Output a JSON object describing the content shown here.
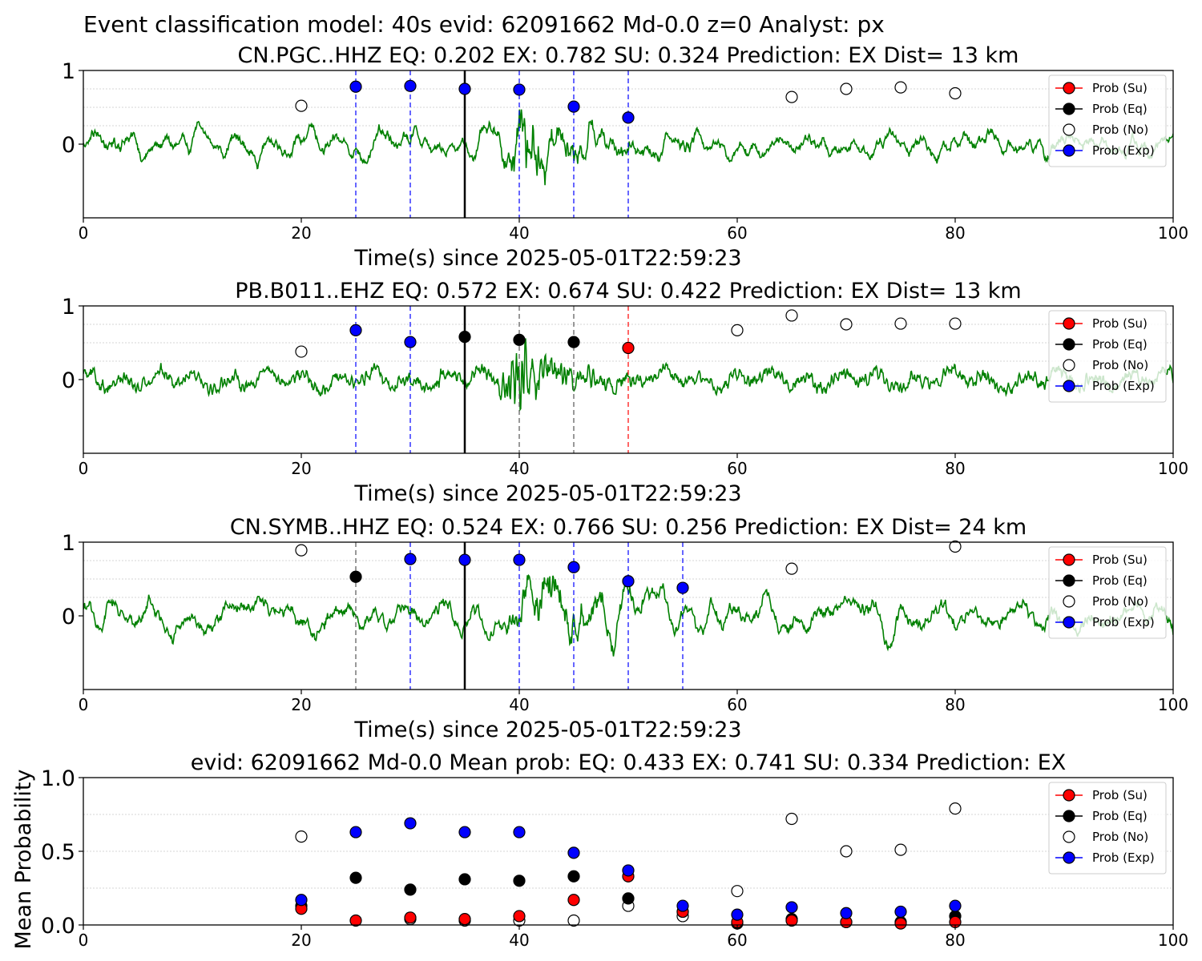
{
  "suptitle": "Event classification model: 40s evid: 62091662 Md-0.0 z=0 Analyst: px",
  "legend": {
    "su": "Prob (Su)",
    "eq": "Prob (Eq)",
    "no": "Prob (No)",
    "exp": "Prob (Exp)"
  },
  "colors": {
    "su": "#ff0000",
    "eq": "#000000",
    "no": "#ffffff",
    "exp": "#0000ff",
    "waveform": "#008000",
    "pick": "#000000"
  },
  "chart_data": [
    {
      "type": "line",
      "title": "CN.PGC..HHZ   EQ: 0.202  EX: 0.782  SU: 0.324   Prediction: EX    Dist= 13 km",
      "xlabel": "Time(s) since 2025-05-01T22:59:23",
      "ylabel": "",
      "xlim": [
        0,
        100
      ],
      "ylim": [
        -1,
        1
      ],
      "xticks": [
        "0",
        "20",
        "40",
        "60",
        "80",
        "100"
      ],
      "yticks": [
        "1",
        "0"
      ],
      "pick_time": 35,
      "waveform_signal": {
        "onset": 38,
        "peak": 40,
        "decay": 4,
        "amplitude": 0.9,
        "noise": 0.1,
        "smooth": 5
      },
      "points": [
        {
          "t": 20,
          "p": 0.52,
          "cls": "no"
        },
        {
          "t": 25,
          "p": 0.78,
          "cls": "exp"
        },
        {
          "t": 30,
          "p": 0.79,
          "cls": "exp"
        },
        {
          "t": 35,
          "p": 0.75,
          "cls": "exp"
        },
        {
          "t": 40,
          "p": 0.74,
          "cls": "exp"
        },
        {
          "t": 45,
          "p": 0.51,
          "cls": "exp"
        },
        {
          "t": 50,
          "p": 0.36,
          "cls": "exp"
        },
        {
          "t": 65,
          "p": 0.64,
          "cls": "no"
        },
        {
          "t": 70,
          "p": 0.75,
          "cls": "no"
        },
        {
          "t": 75,
          "p": 0.77,
          "cls": "no"
        },
        {
          "t": 80,
          "p": 0.69,
          "cls": "no"
        }
      ],
      "vlines": [
        {
          "t": 25,
          "cls": "exp"
        },
        {
          "t": 30,
          "cls": "exp"
        },
        {
          "t": 40,
          "cls": "exp"
        },
        {
          "t": 45,
          "cls": "exp"
        },
        {
          "t": 50,
          "cls": "exp"
        }
      ]
    },
    {
      "type": "line",
      "title": "PB.B011..EHZ   EQ: 0.572  EX: 0.674  SU: 0.422   Prediction: EX    Dist= 13 km",
      "xlabel": "Time(s) since 2025-05-01T22:59:23",
      "ylabel": "",
      "xlim": [
        0,
        100
      ],
      "ylim": [
        -1,
        1
      ],
      "xticks": [
        "0",
        "20",
        "40",
        "60",
        "80",
        "100"
      ],
      "yticks": [
        "1",
        "0"
      ],
      "pick_time": 35,
      "waveform_signal": {
        "onset": 38,
        "peak": 40,
        "decay": 3,
        "amplitude": 0.6,
        "noise": 0.06,
        "smooth": 1
      },
      "points": [
        {
          "t": 20,
          "p": 0.38,
          "cls": "no"
        },
        {
          "t": 25,
          "p": 0.67,
          "cls": "exp"
        },
        {
          "t": 30,
          "p": 0.51,
          "cls": "exp"
        },
        {
          "t": 35,
          "p": 0.58,
          "cls": "eq"
        },
        {
          "t": 40,
          "p": 0.54,
          "cls": "eq"
        },
        {
          "t": 45,
          "p": 0.51,
          "cls": "eq"
        },
        {
          "t": 50,
          "p": 0.43,
          "cls": "su"
        },
        {
          "t": 60,
          "p": 0.67,
          "cls": "no"
        },
        {
          "t": 65,
          "p": 0.87,
          "cls": "no"
        },
        {
          "t": 70,
          "p": 0.75,
          "cls": "no"
        },
        {
          "t": 75,
          "p": 0.76,
          "cls": "no"
        },
        {
          "t": 80,
          "p": 0.76,
          "cls": "no"
        }
      ],
      "vlines": [
        {
          "t": 25,
          "cls": "exp"
        },
        {
          "t": 30,
          "cls": "exp"
        },
        {
          "t": 40,
          "cls": "eq"
        },
        {
          "t": 45,
          "cls": "eq"
        },
        {
          "t": 50,
          "cls": "su"
        }
      ]
    },
    {
      "type": "line",
      "title": "CN.SYMB..HHZ   EQ: 0.524  EX: 0.766  SU: 0.256   Prediction: EX    Dist= 24 km",
      "xlabel": "Time(s) since 2025-05-01T22:59:23",
      "ylabel": "",
      "xlim": [
        0,
        100
      ],
      "ylim": [
        -1,
        1
      ],
      "xticks": [
        "0",
        "20",
        "40",
        "60",
        "80",
        "100"
      ],
      "yticks": [
        "1",
        "0"
      ],
      "pick_time": 35,
      "waveform_signal": {
        "onset": 38,
        "peak": 42,
        "decay": 6,
        "amplitude": 0.7,
        "noise": 0.16,
        "smooth": 9
      },
      "points": [
        {
          "t": 20,
          "p": 0.89,
          "cls": "no"
        },
        {
          "t": 25,
          "p": 0.53,
          "cls": "eq"
        },
        {
          "t": 30,
          "p": 0.77,
          "cls": "exp"
        },
        {
          "t": 35,
          "p": 0.76,
          "cls": "exp"
        },
        {
          "t": 40,
          "p": 0.76,
          "cls": "exp"
        },
        {
          "t": 45,
          "p": 0.66,
          "cls": "exp"
        },
        {
          "t": 50,
          "p": 0.47,
          "cls": "exp"
        },
        {
          "t": 55,
          "p": 0.38,
          "cls": "exp"
        },
        {
          "t": 65,
          "p": 0.64,
          "cls": "no"
        },
        {
          "t": 80,
          "p": 0.94,
          "cls": "no"
        }
      ],
      "vlines": [
        {
          "t": 25,
          "cls": "eq"
        },
        {
          "t": 30,
          "cls": "exp"
        },
        {
          "t": 40,
          "cls": "exp"
        },
        {
          "t": 45,
          "cls": "exp"
        },
        {
          "t": 50,
          "cls": "exp"
        },
        {
          "t": 55,
          "cls": "exp"
        }
      ]
    },
    {
      "type": "scatter",
      "title": "evid: 62091662  Md-0.0   Mean prob:   EQ: 0.433  EX: 0.741  SU: 0.334   Prediction: EX",
      "xlabel": "",
      "ylabel": "Mean Probability",
      "xlim": [
        0,
        100
      ],
      "ylim": [
        0,
        1
      ],
      "xticks": [
        "0",
        "20",
        "40",
        "60",
        "80",
        "100"
      ],
      "yticks": [
        "0.0",
        "0.5",
        "1.0"
      ],
      "x": [
        20,
        25,
        30,
        35,
        40,
        45,
        50,
        55,
        60,
        65,
        70,
        75,
        80
      ],
      "series": [
        {
          "name": "Prob (No)",
          "cls": "no",
          "values": [
            0.6,
            null,
            0.04,
            0.03,
            0.03,
            0.03,
            0.13,
            0.06,
            0.23,
            0.72,
            0.5,
            0.51,
            0.79
          ]
        },
        {
          "name": "Prob (Eq)",
          "cls": "eq",
          "values": [
            0.13,
            0.32,
            0.24,
            0.31,
            0.3,
            0.33,
            0.18,
            0.09,
            0.01,
            0.04,
            0.02,
            0.02,
            0.06
          ]
        },
        {
          "name": "Prob (Su)",
          "cls": "su",
          "values": [
            0.11,
            0.03,
            0.05,
            0.04,
            0.06,
            0.17,
            0.33,
            0.09,
            0.02,
            0.03,
            0.02,
            0.01,
            0.02
          ]
        },
        {
          "name": "Prob (Exp)",
          "cls": "exp",
          "values": [
            0.17,
            0.63,
            0.69,
            0.63,
            0.63,
            0.49,
            0.37,
            0.13,
            0.07,
            0.12,
            0.08,
            0.09,
            0.13
          ]
        }
      ]
    }
  ]
}
